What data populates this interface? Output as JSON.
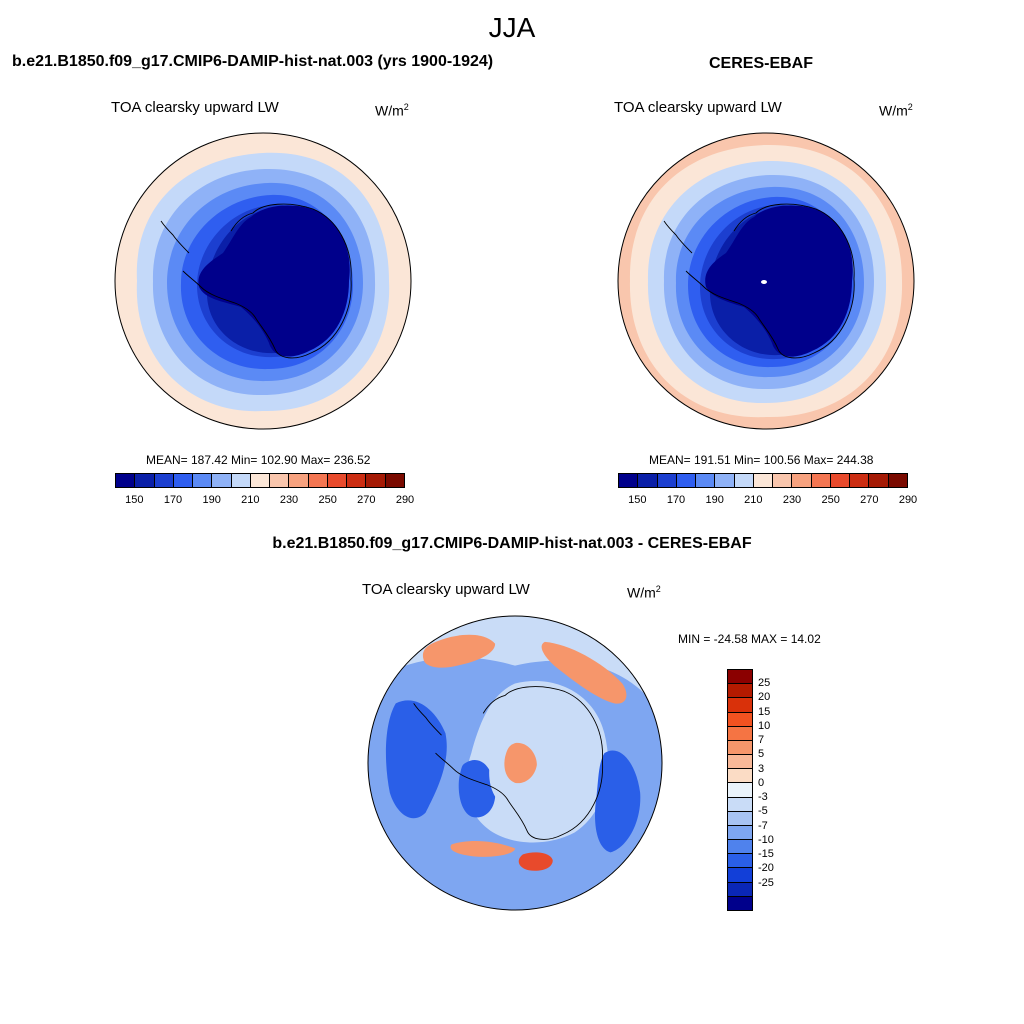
{
  "season": "JJA",
  "panels": {
    "model": {
      "title": "b.e21.B1850.f09_g17.CMIP6-DAMIP-hist-nat.003 (yrs 1900-1924)",
      "variable": "TOA clearsky upward LW",
      "units": "W/m",
      "units_exp": "2",
      "stats": "MEAN= 187.42  Min= 102.90  Max= 236.52"
    },
    "obs": {
      "title": "CERES-EBAF",
      "variable": "TOA clearsky upward LW",
      "units": "W/m",
      "units_exp": "2",
      "stats": "MEAN= 191.51  Min= 100.56  Max= 244.38"
    },
    "diff": {
      "title": "b.e21.B1850.f09_g17.CMIP6-DAMIP-hist-nat.003 - CERES-EBAF",
      "variable": "TOA clearsky upward LW",
      "units": "W/m",
      "units_exp": "2",
      "stats": "MIN = -24.58 MAX =  14.02"
    }
  },
  "colorbar_abs": {
    "colors": [
      "#00008b",
      "#0a1fa8",
      "#1c3fd0",
      "#2f5ef0",
      "#5b8af5",
      "#8fb2f7",
      "#c4d9f9",
      "#fbe6d7",
      "#f9c6ad",
      "#f7a27f",
      "#f47652",
      "#e84a2c",
      "#cc2d12",
      "#a51a05",
      "#7a0a00"
    ],
    "ticks": [
      "150",
      "170",
      "190",
      "210",
      "230",
      "250",
      "270",
      "290"
    ]
  },
  "colorbar_diff": {
    "colors": [
      "#8b0000",
      "#b31a00",
      "#d9310a",
      "#f25220",
      "#f57443",
      "#f6966b",
      "#f8b898",
      "#fbdcc5",
      "#eaf3fb",
      "#c9dcf7",
      "#a7c3f3",
      "#7ea6f1",
      "#4f82ed",
      "#2a5fe8",
      "#123fd8",
      "#0a27b6",
      "#00008b"
    ],
    "ticks": [
      "25",
      "20",
      "15",
      "10",
      "7",
      "5",
      "3",
      "0",
      "-3",
      "-5",
      "-7",
      "-10",
      "-15",
      "-20",
      "-25"
    ]
  },
  "map_colors": {
    "ocean_ring": "#fbe6d7",
    "ocean_ring_warm": "#f9c6ad",
    "l1": "#c4d9f9",
    "l2": "#8fb2f7",
    "l3": "#5b8af5",
    "l4": "#2f5ef0",
    "l5": "#1c3fd0",
    "l6": "#0a1fa8",
    "core": "#00008b",
    "diff_base": "#7ea6f1",
    "diff_light": "#c9dcf7",
    "diff_dark": "#2a5fe8",
    "diff_warm": "#f6966b",
    "diff_hot": "#e84a2c"
  }
}
